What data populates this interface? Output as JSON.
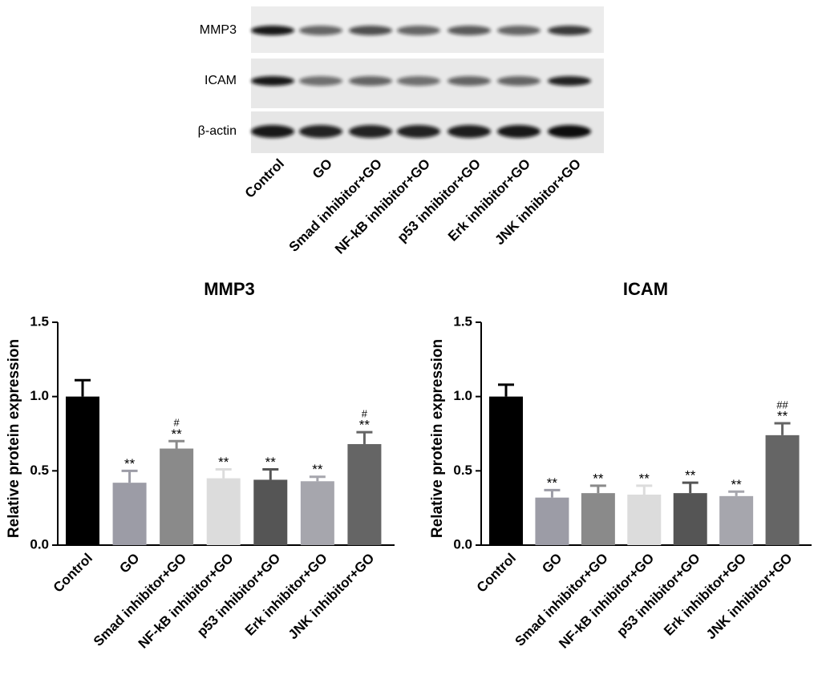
{
  "blot": {
    "rows": [
      "MMP3",
      "ICAM",
      "β-actin"
    ],
    "lanes": [
      "Control",
      "GO",
      "Smad inhibitor+GO",
      "NF-kB inhibitor+GO",
      "p53 inhibitor+GO",
      "Erk inhibitor+GO",
      "JNK inhibitor+GO"
    ]
  },
  "chart_data": [
    {
      "type": "bar",
      "title": "MMP3",
      "y_label": "Relative protein expression",
      "categories": [
        "Control",
        "GO",
        "Smad inhibitor+GO",
        "NF-kB inhibitor+GO",
        "p53 inhibitor+GO",
        "Erk inhibitor+GO",
        "JNK inhibitor+GO"
      ],
      "values": [
        1.0,
        0.42,
        0.65,
        0.45,
        0.44,
        0.43,
        0.68
      ],
      "errors": [
        0.11,
        0.08,
        0.05,
        0.06,
        0.07,
        0.03,
        0.08
      ],
      "annotations": [
        null,
        [
          "**"
        ],
        [
          "#",
          "**"
        ],
        [
          "**"
        ],
        [
          "**"
        ],
        [
          "**"
        ],
        [
          "#",
          "**"
        ]
      ],
      "colors": [
        "#000000",
        "#9c9ca6",
        "#8a8a8a",
        "#dcdcdc",
        "#555555",
        "#a6a6ad",
        "#656565"
      ],
      "ylim": [
        0,
        1.5
      ],
      "yticks": [
        {
          "value": 0,
          "label": "0.0"
        },
        0.5,
        {
          "value": 1,
          "label": "1.0"
        },
        1.5
      ]
    },
    {
      "type": "bar",
      "title": "ICAM",
      "y_label": "Relative protein expression",
      "categories": [
        "Control",
        "GO",
        "Smad inhibitor+GO",
        "NF-kB inhibitor+GO",
        "p53 inhibitor+GO",
        "Erk inhibitor+GO",
        "JNK inhibitor+GO"
      ],
      "values": [
        1.0,
        0.32,
        0.35,
        0.34,
        0.35,
        0.33,
        0.74
      ],
      "errors": [
        0.08,
        0.05,
        0.05,
        0.06,
        0.07,
        0.03,
        0.08
      ],
      "annotations": [
        null,
        [
          "**"
        ],
        [
          "**"
        ],
        [
          "**"
        ],
        [
          "**"
        ],
        [
          "**"
        ],
        [
          "##",
          "**"
        ]
      ],
      "colors": [
        "#000000",
        "#9c9ca6",
        "#8a8a8a",
        "#dcdcdc",
        "#555555",
        "#a6a6ad",
        "#656565"
      ],
      "ylim": [
        0,
        1.5
      ],
      "yticks": [
        {
          "value": 0,
          "label": "0.0"
        },
        0.5,
        {
          "value": 1,
          "label": "1.0"
        },
        1.5
      ]
    }
  ]
}
